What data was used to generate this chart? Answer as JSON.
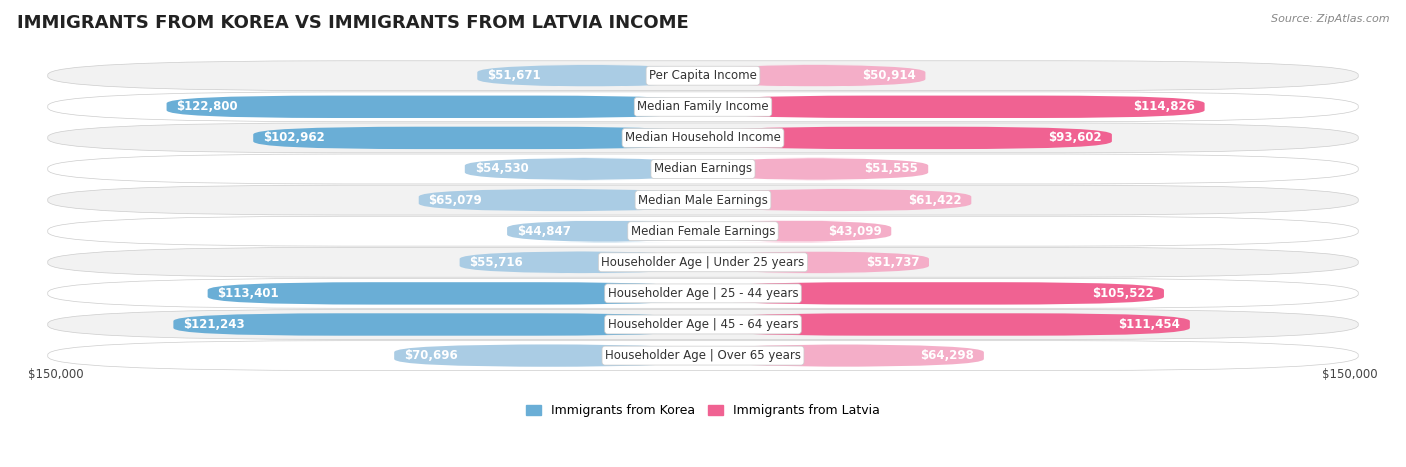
{
  "title": "IMMIGRANTS FROM KOREA VS IMMIGRANTS FROM LATVIA INCOME",
  "source": "Source: ZipAtlas.com",
  "categories": [
    "Per Capita Income",
    "Median Family Income",
    "Median Household Income",
    "Median Earnings",
    "Median Male Earnings",
    "Median Female Earnings",
    "Householder Age | Under 25 years",
    "Householder Age | 25 - 44 years",
    "Householder Age | 45 - 64 years",
    "Householder Age | Over 65 years"
  ],
  "korea_values": [
    51671,
    122800,
    102962,
    54530,
    65079,
    44847,
    55716,
    113401,
    121243,
    70696
  ],
  "latvia_values": [
    50914,
    114826,
    93602,
    51555,
    61422,
    43099,
    51737,
    105522,
    111454,
    64298
  ],
  "korea_color_large": "#6aaed6",
  "korea_color_small": "#aacce4",
  "latvia_color_large": "#f06292",
  "latvia_color_small": "#f4aec8",
  "korea_label": "Immigrants from Korea",
  "latvia_label": "Immigrants from Latvia",
  "max_val": 150000,
  "large_threshold": 75000,
  "background_color": "#ffffff",
  "row_bg_odd": "#f2f2f2",
  "row_bg_even": "#ffffff",
  "xlabel_left": "$150,000",
  "xlabel_right": "$150,000",
  "title_fontsize": 13,
  "cat_fontsize": 8.5,
  "value_fontsize": 8.5,
  "legend_fontsize": 9,
  "source_fontsize": 8
}
